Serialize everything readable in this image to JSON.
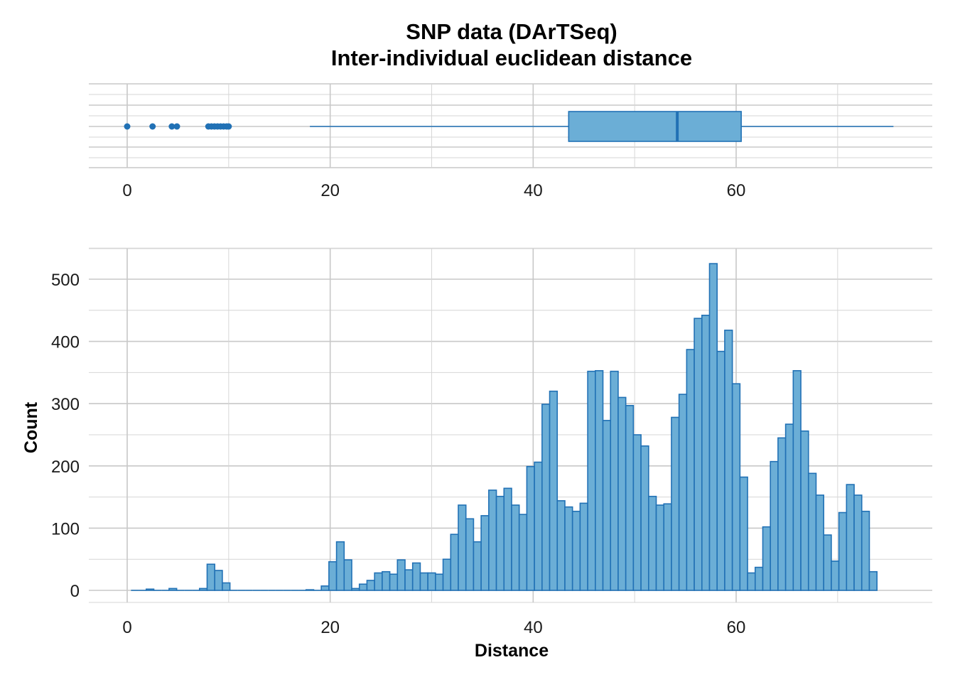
{
  "chart_data": {
    "type": "histogram",
    "title": "SNP data (DArTSeq)",
    "subtitle": "Inter-individual euclidean distance",
    "xlabel": "Distance",
    "ylabel": "Count",
    "xlim": [
      -4,
      79
    ],
    "ylim": [
      0,
      550
    ],
    "x_ticks": [
      0,
      20,
      40,
      60
    ],
    "y_ticks": [
      0,
      100,
      200,
      300,
      400,
      500
    ],
    "bin_width": 0.75,
    "grid": true,
    "colors": {
      "fill": "#6baed6",
      "stroke": "#2171b5",
      "grid": "#c8c8c8"
    },
    "boxplot": {
      "min": 18,
      "q1": 43.5,
      "median": 54.2,
      "q3": 60.5,
      "max": 75.5,
      "outliers": [
        0,
        2.5,
        4.4,
        4.9,
        8,
        8.3,
        8.6,
        8.9,
        9.2,
        9.5,
        9.8,
        10
      ]
    },
    "bins": [
      {
        "x": 0.75,
        "count": 0
      },
      {
        "x": 1.5,
        "count": 0
      },
      {
        "x": 2.25,
        "count": 2
      },
      {
        "x": 3.0,
        "count": 0
      },
      {
        "x": 3.75,
        "count": 0
      },
      {
        "x": 4.5,
        "count": 3
      },
      {
        "x": 5.25,
        "count": 0
      },
      {
        "x": 6.0,
        "count": 0
      },
      {
        "x": 6.75,
        "count": 0
      },
      {
        "x": 7.5,
        "count": 3
      },
      {
        "x": 8.25,
        "count": 42
      },
      {
        "x": 9.0,
        "count": 32
      },
      {
        "x": 9.75,
        "count": 12
      },
      {
        "x": 10.5,
        "count": 0
      },
      {
        "x": 11.25,
        "count": 0
      },
      {
        "x": 12.0,
        "count": 0
      },
      {
        "x": 12.75,
        "count": 0
      },
      {
        "x": 13.5,
        "count": 0
      },
      {
        "x": 14.25,
        "count": 0
      },
      {
        "x": 15.0,
        "count": 0
      },
      {
        "x": 15.75,
        "count": 0
      },
      {
        "x": 16.5,
        "count": 0
      },
      {
        "x": 17.25,
        "count": 0
      },
      {
        "x": 18.0,
        "count": 1
      },
      {
        "x": 18.75,
        "count": 0
      },
      {
        "x": 19.5,
        "count": 7
      },
      {
        "x": 20.25,
        "count": 46
      },
      {
        "x": 21.0,
        "count": 78
      },
      {
        "x": 21.75,
        "count": 49
      },
      {
        "x": 22.5,
        "count": 3
      },
      {
        "x": 23.25,
        "count": 10
      },
      {
        "x": 24.0,
        "count": 16
      },
      {
        "x": 24.75,
        "count": 28
      },
      {
        "x": 25.5,
        "count": 30
      },
      {
        "x": 26.25,
        "count": 26
      },
      {
        "x": 27.0,
        "count": 49
      },
      {
        "x": 27.75,
        "count": 33
      },
      {
        "x": 28.5,
        "count": 44
      },
      {
        "x": 29.25,
        "count": 28
      },
      {
        "x": 30.0,
        "count": 28
      },
      {
        "x": 30.75,
        "count": 26
      },
      {
        "x": 31.5,
        "count": 50
      },
      {
        "x": 32.25,
        "count": 90
      },
      {
        "x": 33.0,
        "count": 137
      },
      {
        "x": 33.75,
        "count": 115
      },
      {
        "x": 34.5,
        "count": 78
      },
      {
        "x": 35.25,
        "count": 120
      },
      {
        "x": 36.0,
        "count": 161
      },
      {
        "x": 36.75,
        "count": 151
      },
      {
        "x": 37.5,
        "count": 164
      },
      {
        "x": 38.25,
        "count": 137
      },
      {
        "x": 39.0,
        "count": 122
      },
      {
        "x": 39.75,
        "count": 199
      },
      {
        "x": 40.5,
        "count": 206
      },
      {
        "x": 41.25,
        "count": 299
      },
      {
        "x": 42.0,
        "count": 320
      },
      {
        "x": 42.75,
        "count": 144
      },
      {
        "x": 43.5,
        "count": 134
      },
      {
        "x": 44.25,
        "count": 127
      },
      {
        "x": 45.0,
        "count": 140
      },
      {
        "x": 45.75,
        "count": 352
      },
      {
        "x": 46.5,
        "count": 353
      },
      {
        "x": 47.25,
        "count": 273
      },
      {
        "x": 48.0,
        "count": 352
      },
      {
        "x": 48.75,
        "count": 310
      },
      {
        "x": 49.5,
        "count": 297
      },
      {
        "x": 50.25,
        "count": 250
      },
      {
        "x": 51.0,
        "count": 232
      },
      {
        "x": 51.75,
        "count": 151
      },
      {
        "x": 52.5,
        "count": 137
      },
      {
        "x": 53.25,
        "count": 139
      },
      {
        "x": 54.0,
        "count": 278
      },
      {
        "x": 54.75,
        "count": 315
      },
      {
        "x": 55.5,
        "count": 387
      },
      {
        "x": 56.25,
        "count": 437
      },
      {
        "x": 57.0,
        "count": 442
      },
      {
        "x": 57.75,
        "count": 525
      },
      {
        "x": 58.5,
        "count": 384
      },
      {
        "x": 59.25,
        "count": 418
      },
      {
        "x": 60.0,
        "count": 332
      },
      {
        "x": 60.75,
        "count": 182
      },
      {
        "x": 61.5,
        "count": 28
      },
      {
        "x": 62.25,
        "count": 37
      },
      {
        "x": 63.0,
        "count": 102
      },
      {
        "x": 63.75,
        "count": 207
      },
      {
        "x": 64.5,
        "count": 245
      },
      {
        "x": 65.25,
        "count": 267
      },
      {
        "x": 66.0,
        "count": 353
      },
      {
        "x": 66.75,
        "count": 256
      },
      {
        "x": 67.5,
        "count": 188
      },
      {
        "x": 68.25,
        "count": 153
      },
      {
        "x": 69.0,
        "count": 89
      },
      {
        "x": 69.75,
        "count": 47
      },
      {
        "x": 70.5,
        "count": 125
      },
      {
        "x": 71.25,
        "count": 170
      },
      {
        "x": 72.0,
        "count": 153
      },
      {
        "x": 72.75,
        "count": 127
      },
      {
        "x": 73.5,
        "count": 30
      }
    ]
  }
}
